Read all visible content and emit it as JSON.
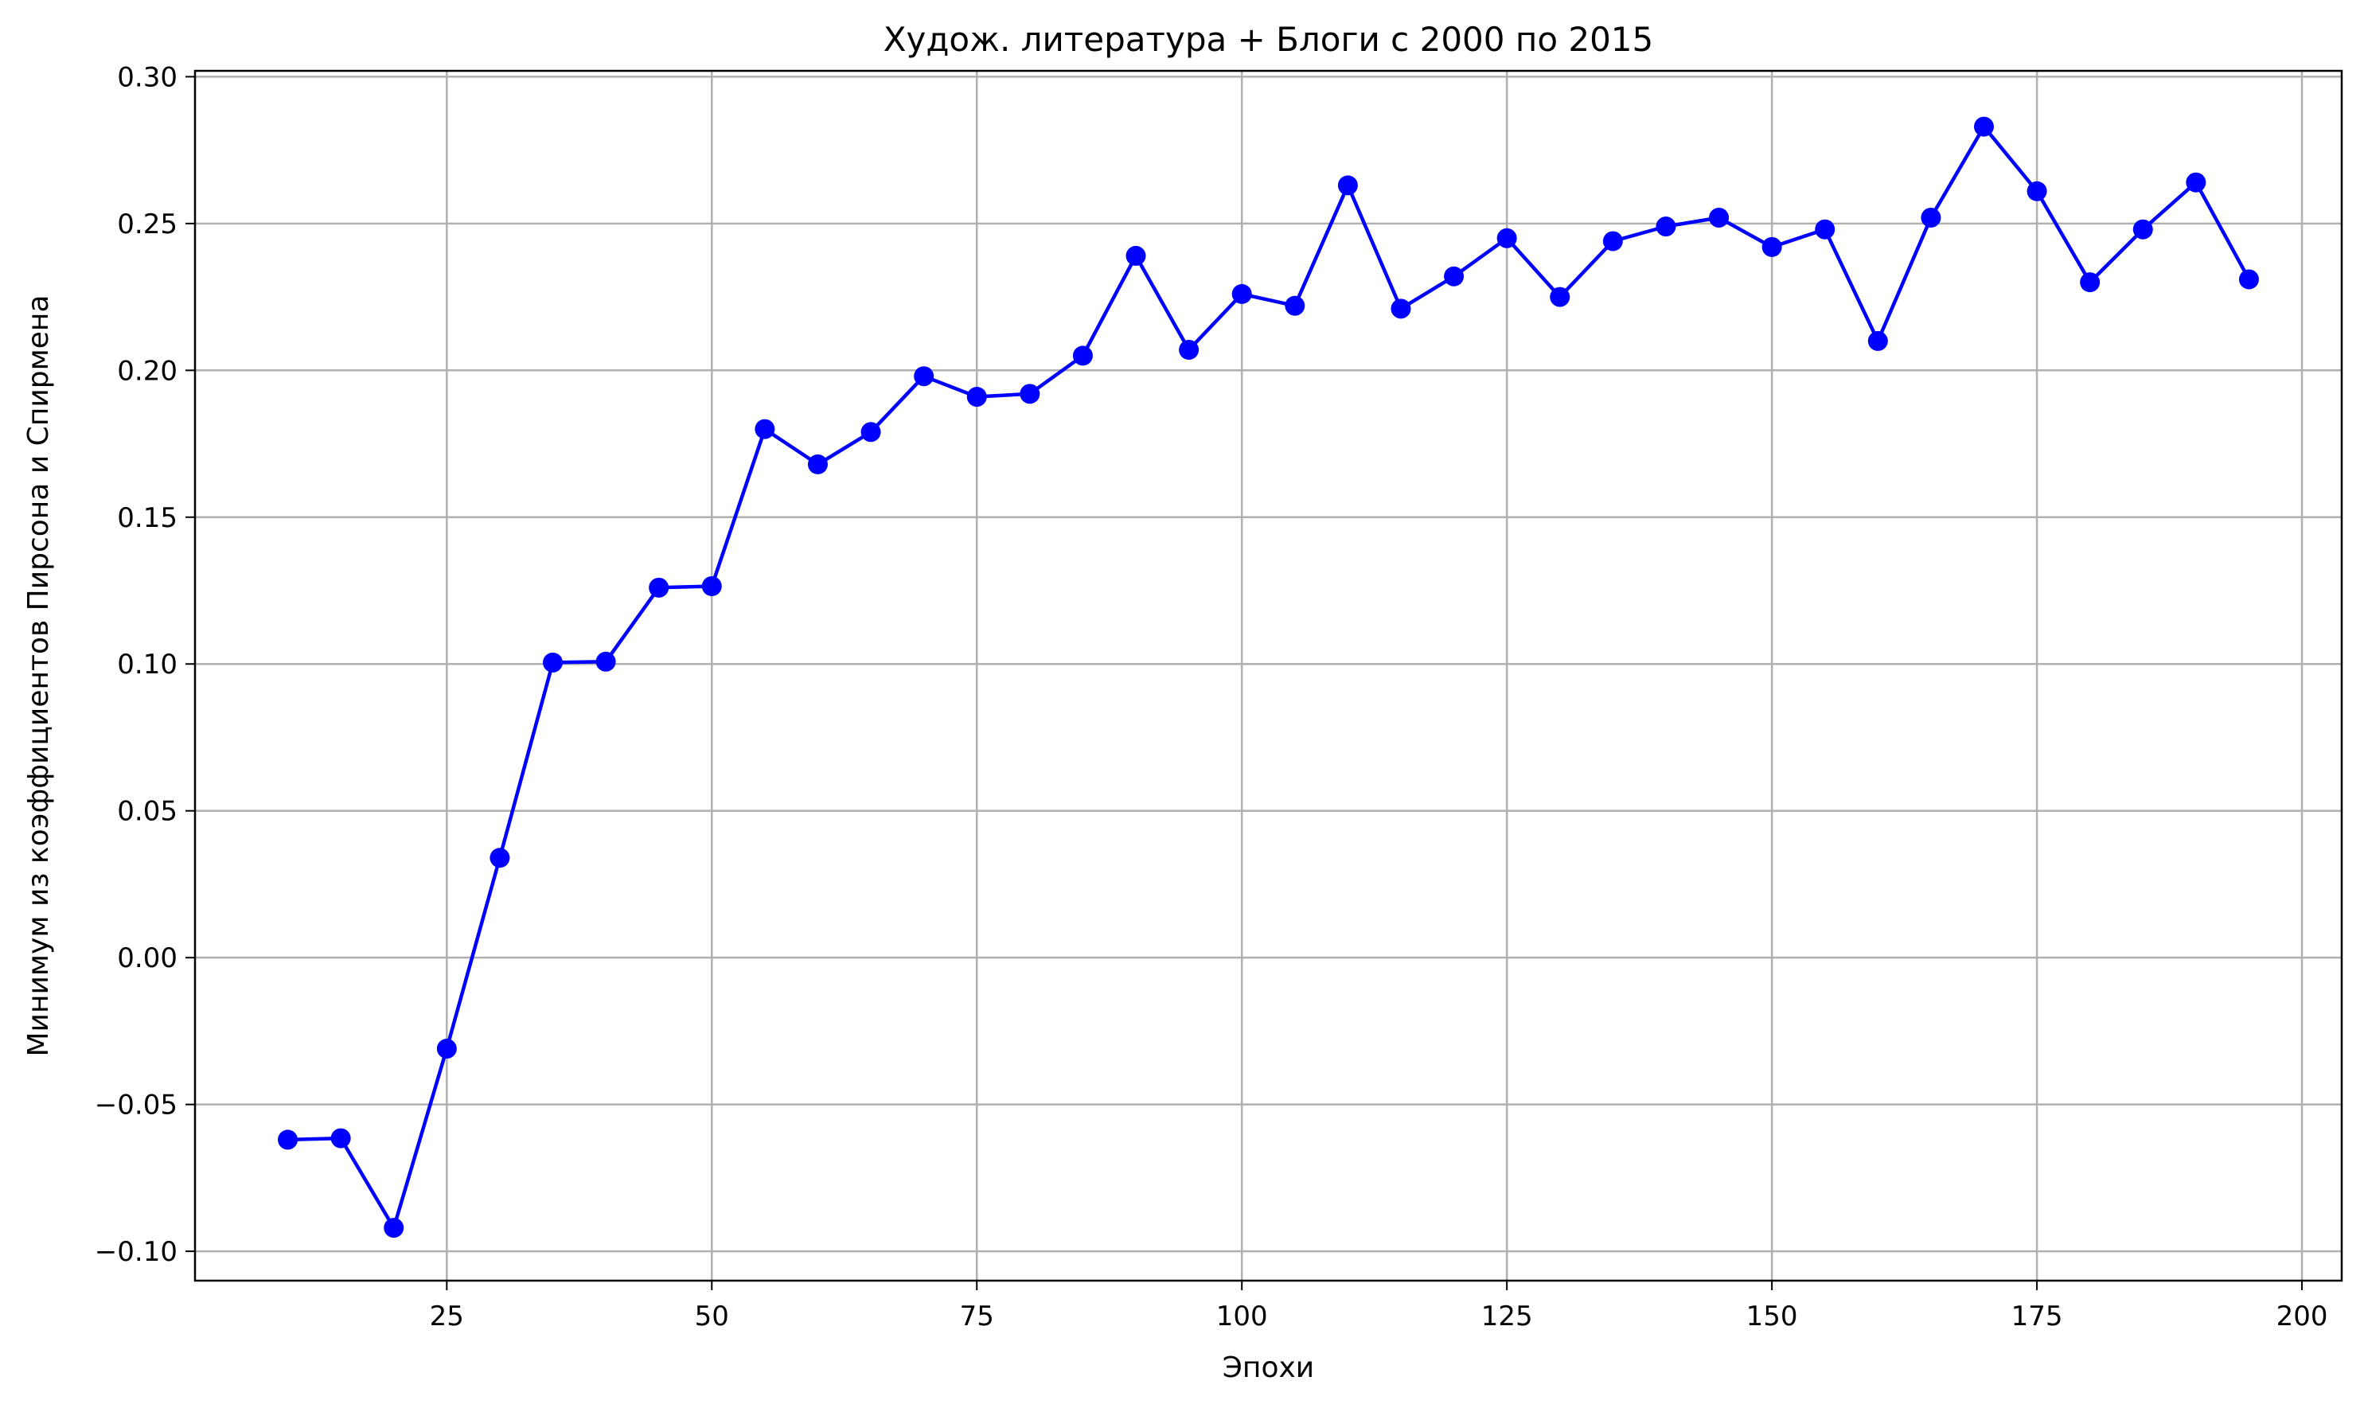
{
  "chart_data": {
    "type": "line",
    "title": "Худож. литература + Блоги с 2000 по 2015",
    "xlabel": "Эпохи",
    "ylabel": "Минимум из коэффициентов Пирсона и Спирмена",
    "xlim": [
      1.25,
      203.75
    ],
    "ylim": [
      -0.11,
      0.302
    ],
    "xticks": [
      25,
      50,
      75,
      100,
      125,
      150,
      175,
      200
    ],
    "xtick_labels": [
      "25",
      "50",
      "75",
      "100",
      "125",
      "150",
      "175",
      "200"
    ],
    "yticks": [
      -0.1,
      -0.05,
      0.0,
      0.05,
      0.1,
      0.15,
      0.2,
      0.25,
      0.3
    ],
    "ytick_labels": [
      "−0.10",
      "−0.05",
      "0.00",
      "0.05",
      "0.10",
      "0.15",
      "0.20",
      "0.25",
      "0.30"
    ],
    "grid": true,
    "legend": null,
    "series": [
      {
        "color": "#0000ff",
        "marker": "circle",
        "x": [
          10,
          15,
          20,
          25,
          30,
          35,
          40,
          45,
          50,
          55,
          60,
          65,
          70,
          75,
          80,
          85,
          90,
          95,
          100,
          105,
          110,
          115,
          120,
          125,
          130,
          135,
          140,
          145,
          150,
          155,
          160,
          165,
          170,
          175,
          180,
          185,
          190,
          195
        ],
        "y": [
          -0.062,
          -0.0615,
          -0.092,
          -0.031,
          0.034,
          0.1005,
          0.1008,
          0.126,
          0.1265,
          0.18,
          0.168,
          0.179,
          0.198,
          0.191,
          0.192,
          0.205,
          0.239,
          0.207,
          0.226,
          0.222,
          0.263,
          0.221,
          0.232,
          0.245,
          0.225,
          0.244,
          0.249,
          0.252,
          0.242,
          0.248,
          0.21,
          0.252,
          0.283,
          0.261,
          0.23,
          0.248,
          0.264,
          0.231
        ]
      }
    ]
  }
}
